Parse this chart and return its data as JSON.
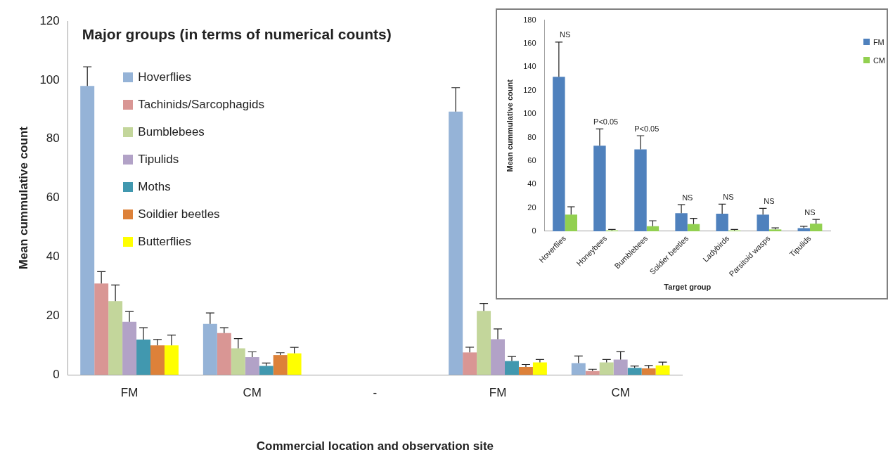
{
  "chart_data": [
    {
      "type": "bar",
      "title": "Major groups (in terms of numerical counts)",
      "xlabel": "Commercial location and observation site",
      "ylabel": "Mean cummulative count",
      "categories": [
        "FM",
        "CM",
        "-",
        "FM",
        "CM"
      ],
      "series": [
        {
          "name": "Hoverflies",
          "color": "#95b3d7",
          "values": [
            98,
            17.3,
            null,
            89.3,
            4
          ],
          "errors": [
            [
              98,
              104.5
            ],
            [
              17.3,
              21
            ],
            null,
            [
              89.3,
              97.4
            ],
            [
              4,
              6.4
            ]
          ]
        },
        {
          "name": "Tachinids/Sarcophagids",
          "color": "#d99694",
          "values": [
            31,
            14.2,
            null,
            7.6,
            1.3
          ],
          "errors": [
            [
              31,
              35
            ],
            [
              14.2,
              16
            ],
            null,
            [
              7.6,
              9.4
            ],
            [
              1.3,
              1.9
            ]
          ]
        },
        {
          "name": "Bumblebees",
          "color": "#c3d69b",
          "values": [
            25,
            9,
            null,
            21.7,
            4.2
          ],
          "errors": [
            [
              25,
              30.5
            ],
            [
              9,
              12.3
            ],
            null,
            [
              21.7,
              24.2
            ],
            [
              4.2,
              5.2
            ]
          ]
        },
        {
          "name": "Tipulids",
          "color": "#b2a2c7",
          "values": [
            18,
            6,
            null,
            12.1,
            5.2
          ],
          "errors": [
            [
              18,
              21.5
            ],
            [
              6,
              7.8
            ],
            null,
            [
              12.1,
              15.6
            ],
            [
              5.2,
              7.9
            ]
          ]
        },
        {
          "name": "Moths",
          "color": "#4198af",
          "values": [
            12,
            3,
            null,
            4.7,
            2.4
          ],
          "errors": [
            [
              12,
              16
            ],
            [
              3,
              4
            ],
            null,
            [
              4.7,
              6.2
            ],
            [
              2.4,
              3
            ]
          ]
        },
        {
          "name": "Soildier beetles",
          "color": "#dd8139",
          "values": [
            10,
            6.7,
            null,
            2.7,
            2.2
          ],
          "errors": [
            [
              10,
              12
            ],
            [
              6.7,
              7.5
            ],
            null,
            [
              2.7,
              3.5
            ],
            [
              2.2,
              3.2
            ]
          ]
        },
        {
          "name": "Butterflies",
          "color": "#ffff00",
          "values": [
            10,
            7.3,
            null,
            4.2,
            3.2
          ],
          "errors": [
            [
              10,
              13.5
            ],
            [
              7.3,
              9.3
            ],
            null,
            [
              4.2,
              5.2
            ],
            [
              3.2,
              4.3
            ]
          ]
        }
      ],
      "ylim": [
        0,
        120
      ],
      "yticks": [
        0,
        20,
        40,
        60,
        80,
        100,
        120
      ],
      "legend": "top left"
    },
    {
      "type": "bar",
      "xlabel": "Target group",
      "ylabel": "Mean cummulative count",
      "categories": [
        "Hoverflies",
        "Honeybees",
        "Bumblebees",
        "Soldier beetles",
        "Ladybirds",
        "Parsitoid wasps",
        "Tipulids"
      ],
      "series": [
        {
          "name": "FM",
          "color": "#4f81bd",
          "values": [
            131.6,
            72.9,
            69.8,
            15.5,
            15,
            14.2,
            2.7
          ],
          "errors": [
            [
              131.6,
              161.3
            ],
            [
              72.9,
              87.3
            ],
            [
              69.8,
              81.5
            ],
            [
              15.5,
              22.7
            ],
            [
              15,
              23.2
            ],
            [
              14.2,
              19.6
            ],
            [
              2.7,
              4.3
            ]
          ]
        },
        {
          "name": "CM",
          "color": "#92d050",
          "values": [
            14.2,
            0.7,
            4.3,
            6.1,
            0.7,
            1.6,
            6.5
          ],
          "errors": [
            [
              14.2,
              20.9
            ],
            [
              0.7,
              1.6
            ],
            [
              4.3,
              9
            ],
            [
              6.1,
              11
            ],
            [
              0.7,
              1.6
            ],
            [
              1.6,
              2.9
            ],
            [
              6.5,
              10.1
            ]
          ]
        }
      ],
      "ylim": [
        0,
        180
      ],
      "yticks": [
        0,
        20,
        40,
        60,
        80,
        100,
        120,
        140,
        160,
        180
      ],
      "legend": "top right",
      "annotations": [
        "NS",
        "P<0.05",
        "P<0.05",
        "NS",
        "NS",
        "NS",
        "NS"
      ]
    }
  ]
}
